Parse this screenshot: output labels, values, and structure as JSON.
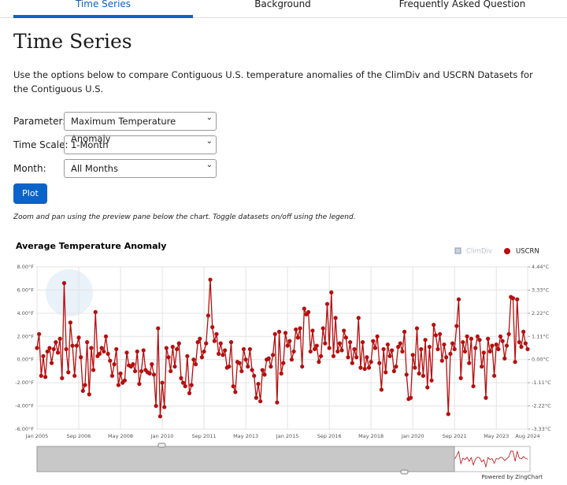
{
  "tabs": [
    "Time Series",
    "Background",
    "Frequently Asked Question"
  ],
  "heading": "Time Series",
  "description": "Use the options below to compare Contiguous U.S. temperature anomalies of the ClimDiv and USCRN Datasets for the Contiguous U.S.",
  "form": {
    "rows": [
      {
        "label": "Parameter:",
        "value": "Maximum Temperature Anomaly"
      },
      {
        "label": "Time Scale:",
        "value": "1-Month"
      },
      {
        "label": "Month:",
        "value": "All Months"
      }
    ],
    "button": "Plot"
  },
  "note": "Zoom and pan using the preview pane below the chart. Toggle datasets on/off using the legend.",
  "powered_by": "Powered by ZingChart",
  "chart_data": {
    "type": "line",
    "title": "Average Temperature Anomaly",
    "hidden_series": [
      {
        "name": "ClimDiv",
        "color": "#c9d3e0"
      }
    ],
    "series": [
      {
        "name": "USCRN",
        "color": "#b50f0f",
        "values": [
          1.0,
          2.2,
          -1.4,
          0.3,
          -1.5,
          0.7,
          1.0,
          -0.3,
          0.9,
          1.5,
          0.6,
          1.8,
          -1.6,
          6.6,
          0.9,
          -1.1,
          3.2,
          1.2,
          -1.4,
          1.2,
          1.9,
          0.2,
          -2.7,
          -2.2,
          1.5,
          -3.0,
          1.0,
          -0.9,
          4.1,
          0.3,
          0.5,
          1.0,
          0.7,
          2.0,
          0.5,
          -0.1,
          -1.4,
          -0.4,
          0.9,
          -2.2,
          -1.2,
          -2.0,
          -1.8,
          0.6,
          -0.5,
          -0.6,
          -0.4,
          -1.0,
          0.7,
          -2.1,
          -1.0,
          0.8,
          -0.9,
          -1.1,
          -1.2,
          -0.4,
          -1.3,
          -4.0,
          2.7,
          -4.9,
          -2.0,
          -4.1,
          1.0,
          0.2,
          -1.0,
          1.1,
          -0.6,
          0.9,
          1.4,
          -1.6,
          -2.0,
          -2.3,
          0.3,
          -2.9,
          -2.2,
          0.0,
          -0.4,
          1.5,
          1.8,
          0.2,
          0.7,
          1.4,
          3.8,
          6.9,
          2.8,
          1.6,
          2.2,
          0.5,
          1.4,
          0.4,
          0.8,
          -0.7,
          -0.6,
          1.5,
          -2.3,
          -2.8,
          -0.2,
          -0.3,
          -1.0,
          0.9,
          0.0,
          -0.6,
          0.9,
          -0.9,
          -1.4,
          -3.3,
          -2.1,
          -3.6,
          -0.9,
          -1.3,
          0.0,
          0.1,
          -0.6,
          0.4,
          2.2,
          -3.7,
          2.4,
          -1.2,
          -0.3,
          2.3,
          1.2,
          1.6,
          0.0,
          0.7,
          2.6,
          1.9,
          2.7,
          -0.6,
          4.4,
          3.9,
          4.1,
          0.7,
          2.5,
          0.9,
          1.2,
          -0.2,
          0.3,
          2.7,
          1.4,
          4.8,
          1.0,
          5.8,
          0.3,
          3.6,
          0.7,
          1.4,
          0.8,
          2.5,
          1.9,
          0.2,
          1.5,
          -0.3,
          0.9,
          0.2,
          3.6,
          -0.7,
          1.5,
          -0.8,
          0.2,
          -0.7,
          -0.2,
          1.6,
          1.0,
          2.0,
          -0.3,
          -2.6,
          0.9,
          -1.1,
          1.3,
          0.3,
          0.8,
          -1.0,
          -0.6,
          1.1,
          1.4,
          0.7,
          2.4,
          -1.3,
          -3.4,
          -3.3,
          0.4,
          -0.7,
          2.7,
          -1.2,
          0.9,
          -1.4,
          1.7,
          -2.4,
          1.1,
          -1.8,
          3.0,
          2.1,
          0.9,
          2.2,
          -0.1,
          1.3,
          0.2,
          -4.7,
          0.5,
          1.4,
          0.9,
          2.9,
          5.2,
          -1.6,
          1.5,
          0.7,
          2.0,
          -0.3,
          1.8,
          -2.3,
          1.0,
          2.0,
          1.7,
          -0.6,
          0.6,
          -3.3,
          1.8,
          0.7,
          1.2,
          -1.4,
          1.3,
          0.9,
          2.0,
          1.6,
          0.1,
          1.2,
          2.2,
          5.4,
          5.3,
          -0.2,
          5.2,
          1.5,
          1.1,
          2.4,
          1.4,
          0.9
        ]
      }
    ],
    "categories": [
      "Jan 2005",
      null,
      null,
      null,
      null,
      null,
      null,
      null,
      null,
      null,
      null,
      null,
      null,
      null,
      null,
      null,
      null,
      null,
      null,
      null,
      "Sep 2006",
      null,
      null,
      null,
      null,
      null,
      null,
      null,
      null,
      null,
      null,
      null,
      null,
      null,
      null,
      null,
      null,
      null,
      null,
      null,
      "May 2008",
      null,
      null,
      null,
      null,
      null,
      null,
      null,
      null,
      null,
      null,
      null,
      null,
      null,
      null,
      null,
      null,
      null,
      null,
      null,
      "Jan 2010",
      null,
      null,
      null,
      null,
      null,
      null,
      null,
      null,
      null,
      null,
      null,
      null,
      null,
      null,
      null,
      null,
      null,
      null,
      null,
      "Sep 2011",
      null,
      null,
      null,
      null,
      null,
      null,
      null,
      null,
      null,
      null,
      null,
      null,
      null,
      null,
      null,
      null,
      null,
      null,
      null,
      "May 2013",
      null,
      null,
      null,
      null,
      null,
      null,
      null,
      null,
      null,
      null,
      null,
      null,
      null,
      null,
      null,
      null,
      null,
      null,
      null,
      "Jan 2015",
      null,
      null,
      null,
      null,
      null,
      null,
      null,
      null,
      null,
      null,
      null,
      null,
      null,
      null,
      null,
      null,
      null,
      null,
      null,
      "Sep 2016",
      null,
      null,
      null,
      null,
      null,
      null,
      null,
      null,
      null,
      null,
      null,
      null,
      null,
      null,
      null,
      null,
      null,
      null,
      null,
      "May 2018",
      null,
      null,
      null,
      null,
      null,
      null,
      null,
      null,
      null,
      null,
      null,
      null,
      null,
      null,
      null,
      null,
      null,
      null,
      null,
      "Jan 2020",
      null,
      null,
      null,
      null,
      null,
      null,
      null,
      null,
      null,
      null,
      null,
      null,
      null,
      null,
      null,
      null,
      null,
      null,
      null,
      "Sep 2021",
      null,
      null,
      null,
      null,
      null,
      null,
      null,
      null,
      null,
      null,
      null,
      null,
      null,
      null,
      null,
      null,
      null,
      null,
      null,
      "May 2023",
      null,
      null,
      null,
      null,
      null,
      null,
      null,
      null,
      null,
      null,
      null,
      null,
      null,
      null,
      "Aug 2024"
    ],
    "ylim": [
      -6,
      8
    ],
    "yticks": [
      {
        "value": 8,
        "label": "8.00°F"
      },
      {
        "value": 6,
        "label": "6.00°F"
      },
      {
        "value": 4,
        "label": "4.00°F"
      },
      {
        "value": 2,
        "label": "2.00°F"
      },
      {
        "value": 0,
        "label": "0.00°F"
      },
      {
        "value": -2,
        "label": "-2.00°F"
      },
      {
        "value": -4,
        "label": "-4.00°F"
      },
      {
        "value": -6,
        "label": "-6.00°F"
      }
    ],
    "y2lim": [
      -3.33,
      4.44
    ],
    "y2ticks": [
      {
        "value": 4.44,
        "label": "4.44°C"
      },
      {
        "value": 3.33,
        "label": "3.33°C"
      },
      {
        "value": 2.22,
        "label": "2.22°C"
      },
      {
        "value": 1.11,
        "label": "1.11°C"
      },
      {
        "value": 0,
        "label": "0.00°C"
      },
      {
        "value": -1.11,
        "label": "-1.11°C"
      },
      {
        "value": -2.22,
        "label": "-2.22°C"
      },
      {
        "value": -3.33,
        "label": "-3.33°C"
      }
    ],
    "grid": true
  }
}
